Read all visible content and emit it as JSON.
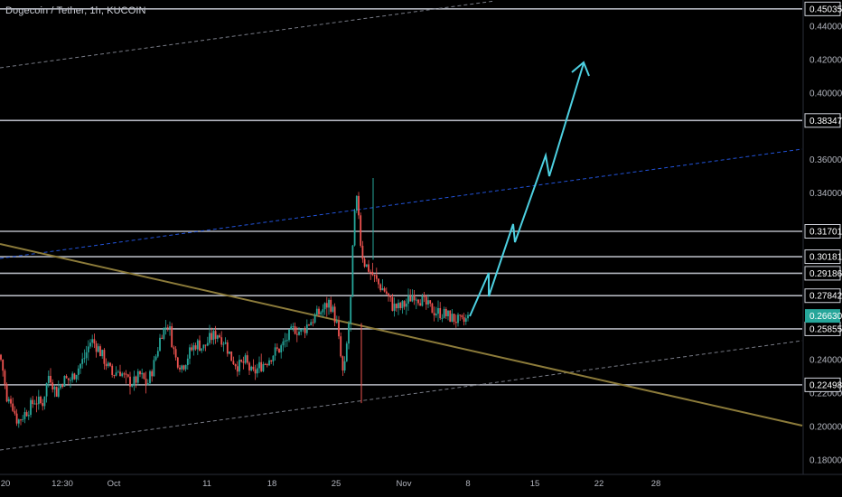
{
  "header": {
    "title": "Dogecoin / Tether, 1h, KUCOIN"
  },
  "price_axis": {
    "ticks": [
      {
        "label": "0.44000",
        "value": 0.44
      },
      {
        "label": "0.42000",
        "value": 0.42
      },
      {
        "label": "0.40000",
        "value": 0.4
      },
      {
        "label": "0.36000",
        "value": 0.36
      },
      {
        "label": "0.34000",
        "value": 0.34
      },
      {
        "label": "0.24000",
        "value": 0.24
      },
      {
        "label": "0.22000",
        "value": 0.22
      },
      {
        "label": "0.20000",
        "value": 0.2
      },
      {
        "label": "0.18000",
        "value": 0.18
      }
    ]
  },
  "levels": [
    {
      "label": "0.45035",
      "value": 0.45035
    },
    {
      "label": "0.38347",
      "value": 0.38347
    },
    {
      "label": "0.31701",
      "value": 0.31701
    },
    {
      "label": "0.30181",
      "value": 0.30181
    },
    {
      "label": "0.29186",
      "value": 0.29186
    },
    {
      "label": "0.27842",
      "value": 0.27842
    },
    {
      "label": "0.25855",
      "value": 0.25855
    },
    {
      "label": "0.22498",
      "value": 0.22498
    }
  ],
  "current_price": {
    "label": "0.26630",
    "value": 0.2663,
    "color": "#26a69a"
  },
  "time_axis": {
    "ticks": [
      {
        "label": "20",
        "t": 0
      },
      {
        "label": "12:30",
        "t": 1
      },
      {
        "label": "Oct",
        "t": 3
      },
      {
        "label": "11",
        "t": 13
      },
      {
        "label": "18",
        "t": 20
      },
      {
        "label": "25",
        "t": 27
      },
      {
        "label": "Nov",
        "t": 34
      },
      {
        "label": "8",
        "t": 41
      },
      {
        "label": "15",
        "t": 48
      },
      {
        "label": "22",
        "t": 55
      },
      {
        "label": "28",
        "t": 61
      }
    ]
  },
  "colors": {
    "background": "#000000",
    "text": "#b2b5be",
    "level_line": "#b2b5be",
    "up_candle": "#26a69a",
    "down_candle": "#ef5350",
    "trendline": "#8c7b3a",
    "channel_dashed": "#787b86",
    "channel_blue": "#2962ff",
    "projection": "#4dd0e1"
  },
  "chart_data": {
    "type": "line",
    "series": [
      {
        "values": [
          [
            0,
            0.243
          ],
          [
            1,
            0.232
          ],
          [
            2,
            0.213
          ],
          [
            3,
            0.217
          ],
          [
            5,
            0.203
          ],
          [
            8,
            0.21
          ],
          [
            10,
            0.216
          ],
          [
            12,
            0.213
          ],
          [
            14,
            0.232
          ],
          [
            16,
            0.22
          ],
          [
            18,
            0.228
          ],
          [
            20,
            0.228
          ],
          [
            22,
            0.234
          ],
          [
            24,
            0.241
          ],
          [
            26,
            0.252
          ],
          [
            28,
            0.247
          ],
          [
            30,
            0.239
          ],
          [
            32,
            0.231
          ],
          [
            34,
            0.234
          ],
          [
            36,
            0.228
          ],
          [
            38,
            0.226
          ],
          [
            40,
            0.231
          ],
          [
            42,
            0.225
          ],
          [
            44,
            0.238
          ],
          [
            46,
            0.256
          ],
          [
            48,
            0.262
          ],
          [
            50,
            0.241
          ],
          [
            52,
            0.236
          ],
          [
            54,
            0.244
          ],
          [
            56,
            0.25
          ],
          [
            58,
            0.247
          ],
          [
            60,
            0.253
          ],
          [
            62,
            0.256
          ],
          [
            64,
            0.251
          ],
          [
            66,
            0.241
          ],
          [
            68,
            0.236
          ],
          [
            70,
            0.239
          ],
          [
            72,
            0.231
          ],
          [
            74,
            0.236
          ],
          [
            76,
            0.239
          ],
          [
            78,
            0.244
          ],
          [
            80,
            0.247
          ],
          [
            82,
            0.253
          ],
          [
            84,
            0.259
          ],
          [
            86,
            0.256
          ],
          [
            88,
            0.262
          ],
          [
            90,
            0.266
          ],
          [
            92,
            0.27
          ],
          [
            94,
            0.275
          ],
          [
            96,
            0.262
          ],
          [
            98,
            0.228
          ],
          [
            100,
            0.274
          ],
          [
            101,
            0.325
          ],
          [
            102,
            0.338
          ],
          [
            103,
            0.306
          ],
          [
            104,
            0.298
          ],
          [
            106,
            0.292
          ],
          [
            108,
            0.285
          ],
          [
            110,
            0.281
          ],
          [
            112,
            0.272
          ],
          [
            114,
            0.271
          ],
          [
            116,
            0.274
          ],
          [
            118,
            0.28
          ],
          [
            120,
            0.276
          ],
          [
            122,
            0.272
          ],
          [
            124,
            0.269
          ],
          [
            126,
            0.268
          ],
          [
            128,
            0.266
          ],
          [
            130,
            0.264
          ],
          [
            132,
            0.262
          ],
          [
            134,
            0.266
          ]
        ]
      }
    ],
    "ylim": [
      0.175,
      0.455
    ]
  }
}
